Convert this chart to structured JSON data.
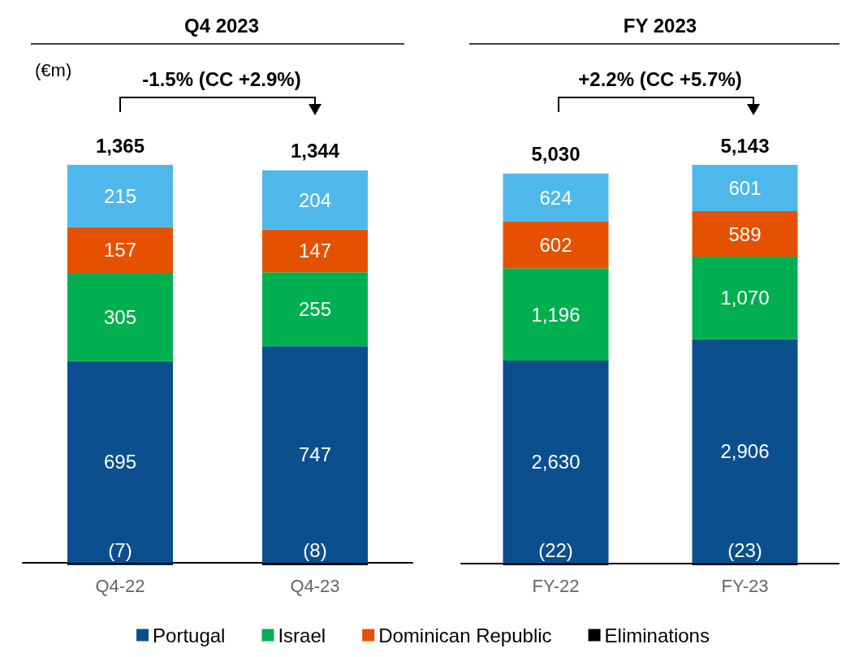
{
  "chart_data": [
    {
      "type": "bar",
      "title": "Q4 2023",
      "ylabel": "(€m)",
      "annotations": [
        "-1.5% (CC +2.9%)"
      ],
      "categories": [
        "Q4-22",
        "Q4-23"
      ],
      "stacked": true,
      "legend": "bottom",
      "totals": [
        "1,365",
        "1,344"
      ],
      "series": [
        {
          "name": "Portugal",
          "color": "#0b4f8f",
          "values": [
            695,
            747
          ],
          "value_labels": [
            "695",
            "747"
          ]
        },
        {
          "name": "Israel",
          "color": "#00b050",
          "values": [
            305,
            255
          ],
          "value_labels": [
            "305",
            "255"
          ]
        },
        {
          "name": "Dominican Republic",
          "color": "#e65100",
          "values": [
            157,
            147
          ],
          "value_labels": [
            "157",
            "147"
          ]
        },
        {
          "color": "#4fb8ea",
          "values": [
            215,
            204
          ],
          "value_labels": [
            "215",
            "204"
          ]
        },
        {
          "name": "Eliminations",
          "color": "#000000",
          "values": [
            -7,
            -8
          ],
          "value_labels": [
            "(7)",
            "(8)"
          ]
        }
      ]
    },
    {
      "type": "bar",
      "title": "FY 2023",
      "annotations": [
        "+2.2% (CC +5.7%)"
      ],
      "categories": [
        "FY-22",
        "FY-23"
      ],
      "stacked": true,
      "legend": "bottom",
      "totals": [
        "5,030",
        "5,143"
      ],
      "series": [
        {
          "name": "Portugal",
          "color": "#0b4f8f",
          "values": [
            2630,
            2906
          ],
          "value_labels": [
            "2,630",
            "2,906"
          ]
        },
        {
          "name": "Israel",
          "color": "#00b050",
          "values": [
            1196,
            1070
          ],
          "value_labels": [
            "1,196",
            "1,070"
          ]
        },
        {
          "name": "Dominican Republic",
          "color": "#e65100",
          "values": [
            602,
            589
          ],
          "value_labels": [
            "602",
            "589"
          ]
        },
        {
          "color": "#4fb8ea",
          "values": [
            624,
            601
          ],
          "value_labels": [
            "624",
            "601"
          ]
        },
        {
          "name": "Eliminations",
          "color": "#000000",
          "values": [
            -22,
            -23
          ],
          "value_labels": [
            "(22)",
            "(23)"
          ]
        }
      ]
    }
  ]
}
